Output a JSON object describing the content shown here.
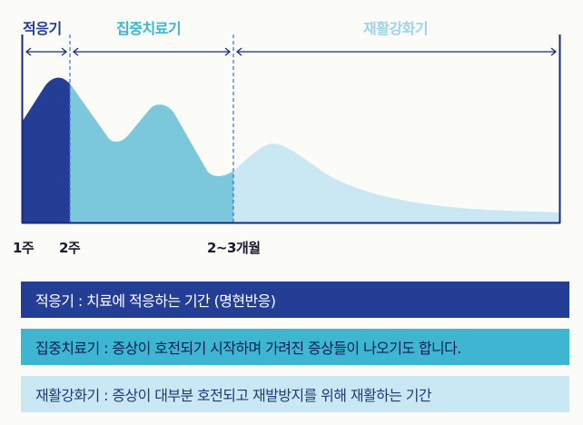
{
  "colors": {
    "adaptation": "#243e96",
    "intensive": "#7bc8dc",
    "rehab": "#cae8f3",
    "frame": "#1a2a7a",
    "rehab_label": "#9fd4e6",
    "intensive_label": "#38b7d0",
    "dashed": "#3a6fd8"
  },
  "phases": {
    "adaptation": "적응기",
    "intensive": "집중치료기",
    "rehab": "재활강화기"
  },
  "ticks": {
    "t1": "1주",
    "t2": "2주",
    "t3": "2~3개월"
  },
  "legend": {
    "adaptation": "적응기 : 치료에 적응하는 기간 (명현반응)",
    "intensive": "집중치료기 : 증상이 호전되기 시작하며 가려진 증상들이 나오기도 합니다.",
    "rehab": "재활강화기 : 증상이 대부분 호전되고 재발방지를 위해 재활하는 기간"
  }
}
